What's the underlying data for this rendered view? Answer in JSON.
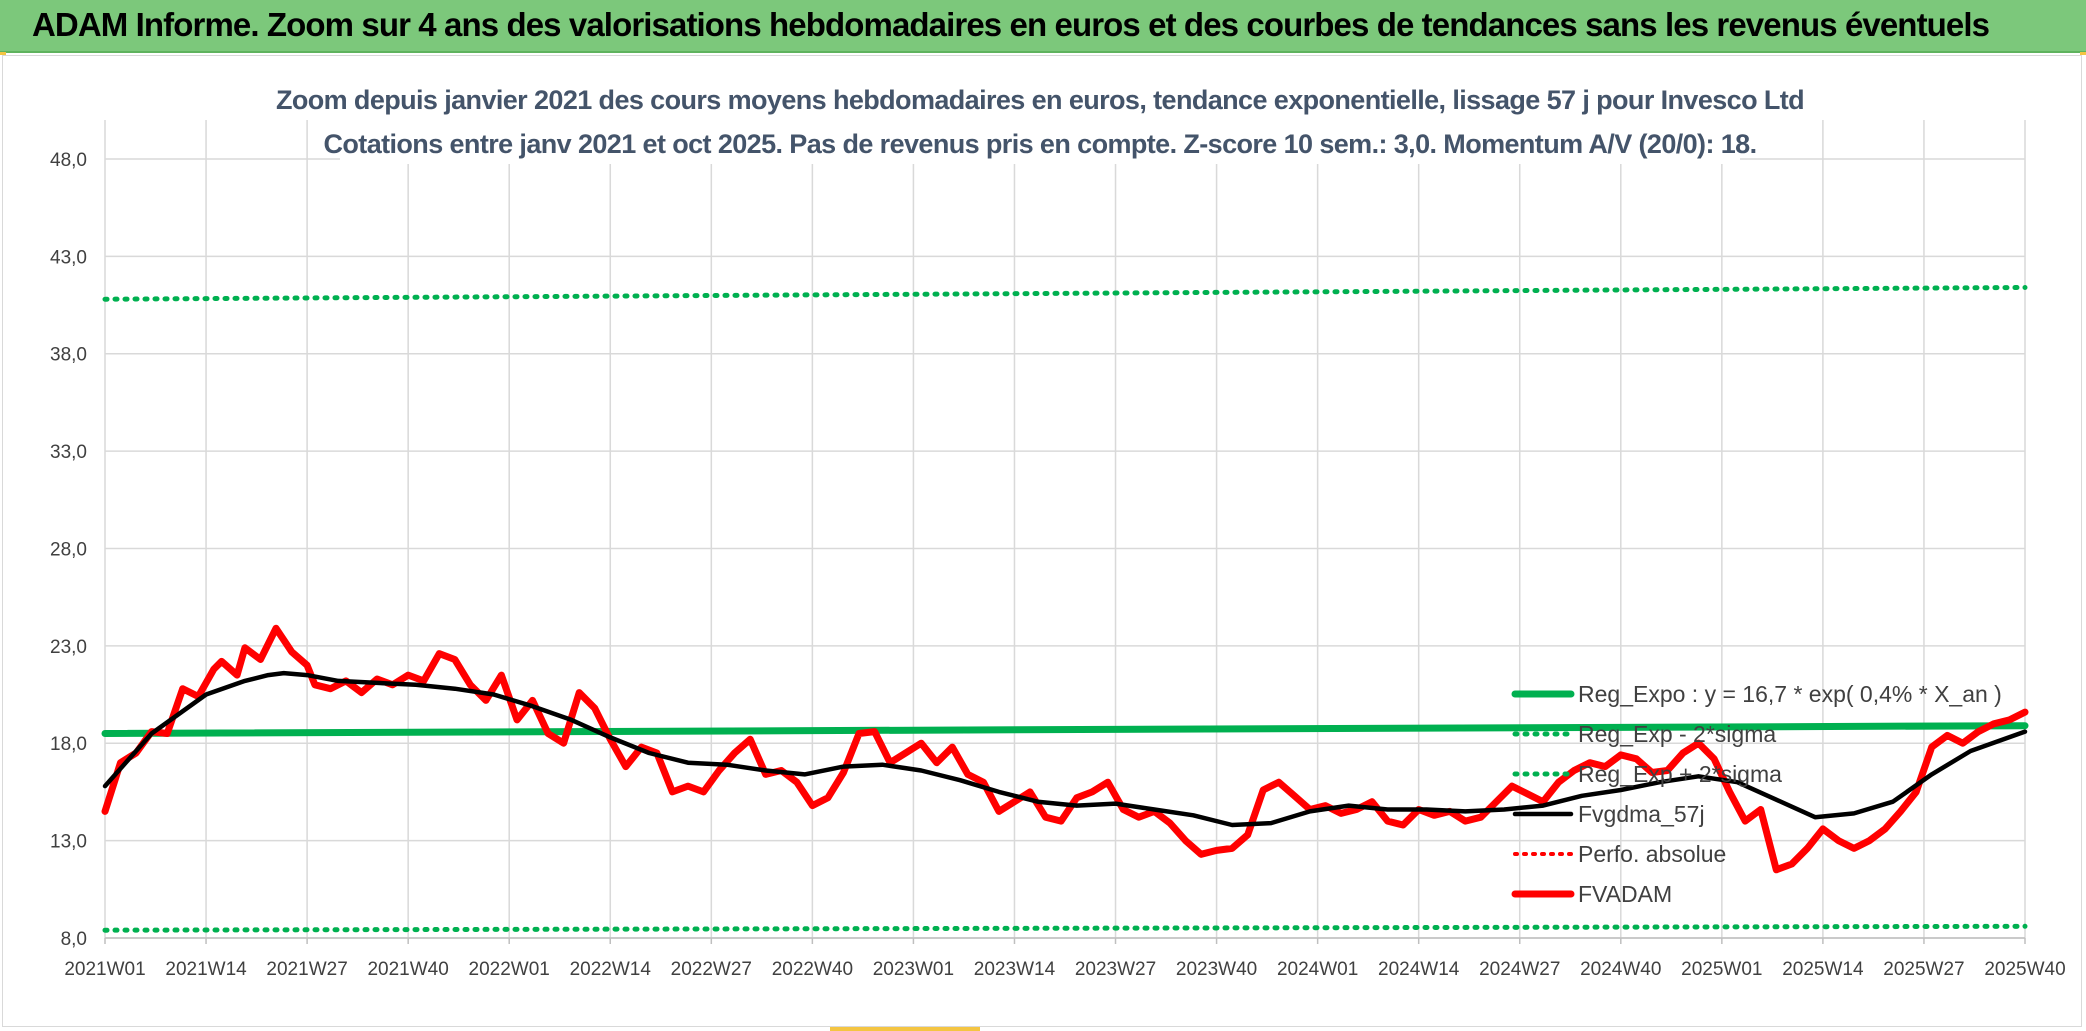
{
  "banner": {
    "title": "ADAM Informe. Zoom sur 4 ans des valorisations hebdomadaires en euros et des courbes de tendances sans les revenus éventuels"
  },
  "colors": {
    "banner": "#7cc87b",
    "reg_expo": "#00b050",
    "fvgdma": "#000000",
    "perfo": "#ff0000",
    "fvadam": "#ff0000",
    "grid": "#d9d9d9",
    "title": "#44546a"
  },
  "chart_data": {
    "type": "line",
    "title": "Zoom depuis janvier 2021 des cours moyens hebdomadaires en euros, tendance exponentielle, lissage 57 j pour Invesco Ltd",
    "subtitle": "Cotations entre janv 2021 et oct 2025. Pas de revenus pris en compte. Z-score 10 sem.: 3,0. Momentum A/V (20/0): 18.",
    "xlabel": "",
    "ylabel": "",
    "ylim": [
      8,
      50
    ],
    "y_ticks": [
      "8,0",
      "13,0",
      "18,0",
      "23,0",
      "28,0",
      "33,0",
      "38,0",
      "43,0",
      "48,0"
    ],
    "y_tick_values": [
      8,
      13,
      18,
      23,
      28,
      33,
      38,
      43,
      48
    ],
    "x_ticks": [
      "2021W01",
      "2021W14",
      "2021W27",
      "2021W40",
      "2022W01",
      "2022W14",
      "2022W27",
      "2022W40",
      "2023W01",
      "2023W14",
      "2023W27",
      "2023W40",
      "2024W01",
      "2024W14",
      "2024W27",
      "2024W40",
      "2025W01",
      "2025W14",
      "2025W27",
      "2025W40"
    ],
    "x_range_weeks": [
      0,
      247
    ],
    "grid": true,
    "legend_position": "right, lower-middle",
    "series": [
      {
        "name": "Reg_Expo : y = 16,7 * exp( 0,4% *  X_an )",
        "style": "solid-thick",
        "x": [
          0,
          247
        ],
        "y": [
          18.5,
          18.9
        ]
      },
      {
        "name": "Reg_Exp - 2*sigma",
        "style": "dotted",
        "x": [
          0,
          247
        ],
        "y": [
          8.4,
          8.6
        ]
      },
      {
        "name": "Reg_Exp + 2*sigma",
        "style": "dotted",
        "x": [
          0,
          247
        ],
        "y": [
          40.8,
          41.4
        ]
      },
      {
        "name": "Fvgdma_57j",
        "style": "solid",
        "x": [
          0,
          6,
          13,
          18,
          21,
          23,
          26,
          30,
          35,
          40,
          45,
          50,
          55,
          60,
          65,
          70,
          75,
          80,
          85,
          90,
          95,
          100,
          105,
          110,
          115,
          120,
          125,
          130,
          135,
          140,
          145,
          150,
          155,
          160,
          165,
          170,
          175,
          180,
          185,
          190,
          195,
          200,
          205,
          210,
          215,
          220,
          225,
          230,
          235,
          240,
          247
        ],
        "y": [
          15.8,
          18.5,
          20.5,
          21.2,
          21.5,
          21.6,
          21.5,
          21.2,
          21.1,
          21.0,
          20.8,
          20.5,
          19.9,
          19.2,
          18.3,
          17.5,
          17.0,
          16.9,
          16.6,
          16.4,
          16.8,
          16.9,
          16.6,
          16.1,
          15.5,
          15.0,
          14.8,
          14.9,
          14.6,
          14.3,
          13.8,
          13.9,
          14.5,
          14.8,
          14.6,
          14.6,
          14.5,
          14.6,
          14.8,
          15.3,
          15.6,
          16.0,
          16.3,
          16.0,
          15.1,
          14.2,
          14.4,
          15.0,
          16.4,
          17.6,
          18.6
        ]
      },
      {
        "name": "Perfo. absolue",
        "style": "dotted",
        "x": [],
        "y": []
      },
      {
        "name": "FVADAM",
        "style": "solid-thick",
        "x": [
          0,
          2,
          4,
          6,
          8,
          10,
          12,
          14,
          15,
          17,
          18,
          20,
          22,
          24,
          26,
          27,
          29,
          31,
          33,
          35,
          37,
          39,
          41,
          43,
          45,
          47,
          49,
          51,
          53,
          55,
          57,
          59,
          61,
          63,
          65,
          67,
          69,
          71,
          73,
          75,
          77,
          79,
          81,
          83,
          85,
          87,
          89,
          91,
          93,
          95,
          97,
          99,
          101,
          103,
          105,
          107,
          109,
          111,
          113,
          115,
          117,
          119,
          121,
          123,
          125,
          127,
          129,
          131,
          133,
          135,
          137,
          139,
          141,
          143,
          145,
          147,
          149,
          151,
          153,
          155,
          157,
          159,
          161,
          163,
          165,
          167,
          169,
          171,
          173,
          175,
          177,
          179,
          181,
          183,
          185,
          187,
          189,
          191,
          193,
          195,
          197,
          199,
          201,
          203,
          205,
          207,
          209,
          211,
          213,
          215,
          217,
          219,
          221,
          223,
          225,
          227,
          229,
          231,
          233,
          235,
          237,
          239,
          241,
          243,
          245,
          247
        ],
        "y": [
          14.5,
          17.0,
          17.5,
          18.6,
          18.5,
          20.8,
          20.4,
          21.8,
          22.2,
          21.5,
          22.9,
          22.3,
          23.9,
          22.7,
          22.0,
          21.0,
          20.8,
          21.2,
          20.6,
          21.3,
          21.0,
          21.5,
          21.2,
          22.6,
          22.3,
          21.0,
          20.2,
          21.5,
          19.2,
          20.2,
          18.5,
          18.0,
          20.6,
          19.8,
          18.2,
          16.8,
          17.8,
          17.5,
          15.5,
          15.8,
          15.5,
          16.6,
          17.5,
          18.2,
          16.4,
          16.6,
          16.0,
          14.8,
          15.2,
          16.5,
          18.5,
          18.6,
          17.0,
          17.5,
          18.0,
          17.0,
          17.8,
          16.4,
          16.0,
          14.5,
          15.0,
          15.5,
          14.2,
          14.0,
          15.2,
          15.5,
          16.0,
          14.6,
          14.2,
          14.5,
          13.9,
          13.0,
          12.3,
          12.5,
          12.6,
          13.3,
          15.6,
          16.0,
          15.3,
          14.6,
          14.8,
          14.4,
          14.6,
          15.0,
          14.0,
          13.8,
          14.6,
          14.3,
          14.5,
          14.0,
          14.2,
          15.0,
          15.8,
          15.4,
          15.0,
          16.0,
          16.6,
          17.0,
          16.8,
          17.4,
          17.2,
          16.5,
          16.6,
          17.5,
          18.0,
          17.2,
          15.5,
          14.0,
          14.6,
          11.5,
          11.8,
          12.6,
          13.6,
          13.0,
          12.6,
          13.0,
          13.6,
          14.5,
          15.5,
          17.8,
          18.4,
          18.0,
          18.6,
          19.0,
          19.2,
          19.6
        ]
      }
    ]
  }
}
